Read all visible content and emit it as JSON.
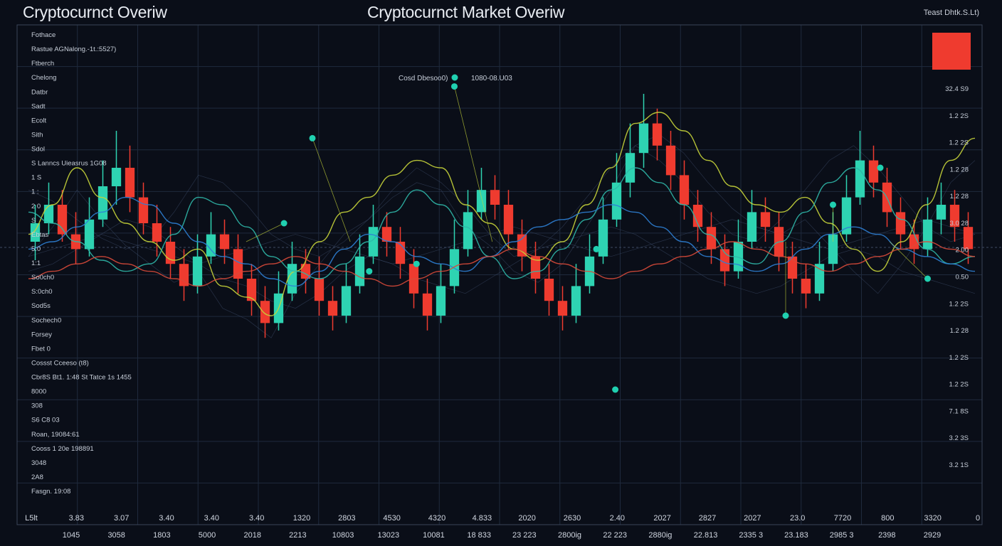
{
  "header": {
    "left_title": "Cryptocurnct Overiw",
    "center_title": "Cryptocurnct Market Overiw",
    "right_caption": "Teast Dhtk.S.Lt)"
  },
  "colors": {
    "background": "#0a0e18",
    "bull": "#2ed3b2",
    "bear": "#ef3b2f",
    "line_yellow": "#c6d43a",
    "line_teal": "#2fb7a8",
    "line_blue": "#2d7fd4",
    "line_red": "#d94a3a",
    "marker": "#20d0b0",
    "grid": "#1f2a3d",
    "legend_swatch": "#ef3b2f"
  },
  "chart_data": {
    "type": "line",
    "title": "Cryptocurnct Market Overiw",
    "grid": true,
    "legend": "top-right",
    "xlim": [
      0,
      100
    ],
    "ylim": [
      0,
      100
    ],
    "left_labels": [
      "Fothace",
      "Rastue AGNalong.-1t.:5527)",
      "Ftberch",
      "Chelong",
      "Datbr",
      "Sadt",
      "Ecolt",
      "Sith",
      "Sdol",
      "S Lanncs Uieasrus 1G08",
      "1 S",
      "1 :",
      "2 0",
      "S",
      "Ebtas",
      "5:0",
      "1:1",
      "So0ch0",
      "S:0ch0",
      "Sod5s",
      "Sochech0",
      "Forsey",
      "Fbet 0",
      "Cossst Cceeso (t8)",
      "Cbr8S Bt1. 1:48 St Tatce 1s 1455",
      "8000",
      "308",
      "S6 C8 03",
      "Roan, 19084:61",
      "Cooss 1 20e 198891",
      "3048",
      "2A8",
      "Fasgn. 19:08"
    ],
    "right_labels": [
      "32.4 S9",
      "1.2 2S",
      "1.2 2S",
      "1.2 28",
      "1.2 28",
      "3.0 28",
      "2 00",
      "0.50",
      "1.2 2S",
      "1.2 28",
      "1.2 2S",
      "1.2 2S",
      "7.1 8S",
      "3.2 3S",
      "3.2 1S"
    ],
    "right_tick_labels": [
      "32.4 S9",
      "1.2 2S",
      "1.2 2S",
      "1.2 28",
      "1.2 28",
      "3.0 28",
      "2 00",
      "0.50",
      "1.2 2S",
      "1.2 28",
      "1.2 2S",
      "1.2 2S",
      "7.1 8S",
      "3.2 3S",
      "3.2 1S"
    ],
    "x_ticks_row1": [
      "L5lt",
      "3.83",
      "3.07",
      "3.40",
      "3.40",
      "3.40",
      "1320",
      "2803",
      "4530",
      "4320",
      "4.833",
      "2020",
      "2630",
      "2.40",
      "2027",
      "2827",
      "2027",
      "23.0",
      "7720",
      "800",
      "3320",
      "0"
    ],
    "x_ticks_row2": [
      "1045",
      "3058",
      "1803",
      "5000",
      "2018",
      "2213",
      "10803",
      "13023",
      "10081",
      "18 833",
      "23 223",
      "2800ig",
      "22 223",
      "2880ig",
      "22.813",
      "2335 3",
      "23.183",
      "2985 3",
      "2398",
      "2929"
    ],
    "annotations": [
      "Cosd Dbesoo0)",
      "1080-08.U03"
    ],
    "series": [
      {
        "name": "",
        "values": [
          52,
          60,
          70,
          62,
          55,
          50,
          45,
          48,
          38,
          35,
          30,
          42,
          50,
          58,
          62,
          68,
          72,
          70,
          60,
          55,
          48,
          45,
          50,
          60,
          70,
          82,
          85,
          80,
          72,
          65,
          60,
          58,
          62,
          55,
          48,
          42,
          50,
          60,
          72,
          78
        ]
      },
      {
        "name": "",
        "values": [
          58,
          55,
          50,
          45,
          42,
          44,
          52,
          62,
          60,
          54,
          46,
          42,
          40,
          44,
          50,
          58,
          64,
          60,
          54,
          46,
          40,
          42,
          48,
          56,
          64,
          70,
          66,
          60,
          52,
          46,
          44,
          50,
          58,
          66,
          70,
          64,
          56,
          48,
          44,
          46
        ]
      },
      {
        "name": "",
        "values": [
          48,
          50,
          54,
          58,
          62,
          60,
          55,
          50,
          46,
          44,
          40,
          38,
          42,
          48,
          52,
          50,
          46,
          44,
          42,
          46,
          50,
          54,
          56,
          58,
          60,
          58,
          54,
          50,
          46,
          44,
          42,
          44,
          48,
          52,
          54,
          52,
          48,
          46,
          44,
          42
        ]
      },
      {
        "name": "",
        "values": [
          40,
          42,
          44,
          46,
          44,
          42,
          40,
          38,
          40,
          42,
          44,
          46,
          44,
          42,
          40,
          38,
          40,
          42,
          44,
          46,
          48,
          46,
          44,
          42,
          40,
          42,
          44,
          46,
          48,
          50,
          48,
          46,
          44,
          42,
          44,
          46,
          48,
          50,
          48,
          46
        ]
      }
    ],
    "candles": [
      [
        50,
        55,
        45,
        60
      ],
      [
        55,
        60,
        52,
        66
      ],
      [
        60,
        52,
        50,
        64
      ],
      [
        52,
        48,
        44,
        58
      ],
      [
        48,
        56,
        46,
        62
      ],
      [
        56,
        65,
        54,
        72
      ],
      [
        65,
        70,
        60,
        80
      ],
      [
        70,
        62,
        58,
        76
      ],
      [
        62,
        55,
        52,
        66
      ],
      [
        55,
        50,
        46,
        60
      ],
      [
        50,
        44,
        40,
        54
      ],
      [
        44,
        38,
        34,
        48
      ],
      [
        38,
        46,
        36,
        52
      ],
      [
        46,
        52,
        44,
        58
      ],
      [
        52,
        48,
        44,
        56
      ],
      [
        48,
        40,
        36,
        52
      ],
      [
        40,
        34,
        30,
        44
      ],
      [
        34,
        28,
        24,
        38
      ],
      [
        28,
        36,
        26,
        42
      ],
      [
        36,
        44,
        34,
        50
      ],
      [
        44,
        40,
        36,
        48
      ],
      [
        40,
        34,
        30,
        46
      ],
      [
        34,
        30,
        26,
        38
      ],
      [
        30,
        38,
        28,
        44
      ],
      [
        38,
        46,
        36,
        52
      ],
      [
        46,
        54,
        44,
        60
      ],
      [
        54,
        50,
        46,
        58
      ],
      [
        50,
        44,
        40,
        54
      ],
      [
        44,
        36,
        32,
        48
      ],
      [
        36,
        30,
        26,
        40
      ],
      [
        30,
        38,
        28,
        44
      ],
      [
        38,
        48,
        36,
        56
      ],
      [
        48,
        58,
        46,
        64
      ],
      [
        58,
        64,
        56,
        70
      ],
      [
        64,
        60,
        56,
        68
      ],
      [
        60,
        52,
        48,
        64
      ],
      [
        52,
        46,
        42,
        56
      ],
      [
        46,
        40,
        36,
        50
      ],
      [
        40,
        34,
        30,
        44
      ],
      [
        34,
        30,
        26,
        38
      ],
      [
        30,
        38,
        28,
        44
      ],
      [
        38,
        46,
        36,
        52
      ],
      [
        46,
        56,
        44,
        62
      ],
      [
        56,
        66,
        54,
        74
      ],
      [
        66,
        74,
        62,
        82
      ],
      [
        74,
        82,
        70,
        90
      ],
      [
        82,
        76,
        72,
        86
      ],
      [
        76,
        68,
        64,
        80
      ],
      [
        68,
        60,
        56,
        72
      ],
      [
        60,
        54,
        50,
        64
      ],
      [
        54,
        48,
        44,
        58
      ],
      [
        48,
        42,
        38,
        52
      ],
      [
        42,
        50,
        40,
        56
      ],
      [
        50,
        58,
        48,
        64
      ],
      [
        58,
        54,
        50,
        62
      ],
      [
        54,
        46,
        42,
        58
      ],
      [
        46,
        40,
        36,
        50
      ],
      [
        40,
        36,
        32,
        44
      ],
      [
        36,
        44,
        34,
        50
      ],
      [
        44,
        52,
        42,
        58
      ],
      [
        52,
        62,
        50,
        68
      ],
      [
        62,
        72,
        60,
        80
      ],
      [
        72,
        66,
        62,
        76
      ],
      [
        66,
        58,
        54,
        70
      ],
      [
        58,
        52,
        48,
        62
      ],
      [
        52,
        48,
        44,
        56
      ],
      [
        48,
        56,
        46,
        62
      ],
      [
        56,
        60,
        52,
        66
      ],
      [
        60,
        54,
        50,
        64
      ],
      [
        54,
        48,
        44,
        58
      ]
    ],
    "markers": [
      [
        27,
        55
      ],
      [
        36,
        42
      ],
      [
        45,
        92
      ],
      [
        60,
        48
      ],
      [
        80,
        30
      ],
      [
        90,
        70
      ],
      [
        95,
        40
      ],
      [
        62,
        10
      ],
      [
        30,
        78
      ],
      [
        41,
        44
      ],
      [
        85,
        60
      ]
    ]
  }
}
